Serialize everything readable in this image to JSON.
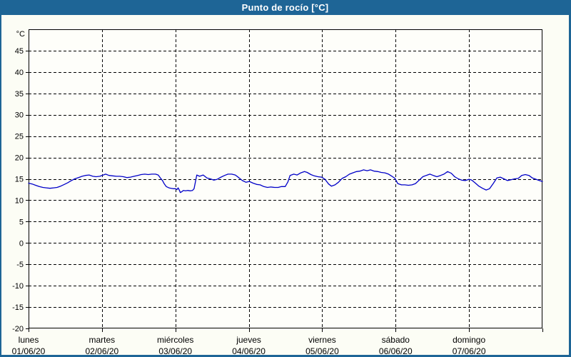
{
  "window": {
    "title": "Punto de rocío [°C]",
    "titlebar_color": "#1e6596",
    "border_color": "#1e6596",
    "background_color": "#fcfdf5"
  },
  "chart_data": {
    "type": "line",
    "title": "Punto de rocío [°C]",
    "y_unit_label": "°C",
    "ylim": [
      -20,
      50
    ],
    "yticks": [
      45,
      40,
      35,
      30,
      25,
      20,
      15,
      10,
      5,
      0,
      -5,
      -10,
      -15,
      -20
    ],
    "grid": "dashed",
    "legend_position": "none",
    "line_color": "#0000c8",
    "plot_background": "#fefefa",
    "x_range_hours": [
      0,
      168
    ],
    "x_days": [
      {
        "name": "lunes",
        "date": "01/06/20"
      },
      {
        "name": "martes",
        "date": "02/06/20"
      },
      {
        "name": "miércoles",
        "date": "03/06/20"
      },
      {
        "name": "jueves",
        "date": "04/06/20"
      },
      {
        "name": "viernes",
        "date": "05/06/20"
      },
      {
        "name": "sábado",
        "date": "06/06/20"
      },
      {
        "name": "domingo",
        "date": "07/06/20"
      }
    ],
    "series": [
      {
        "name": "Punto de rocío",
        "unit": "°C",
        "points": [
          [
            0.0,
            14.0
          ],
          [
            1.2,
            13.8
          ],
          [
            2.3,
            13.5
          ],
          [
            3.5,
            13.2
          ],
          [
            4.7,
            13.0
          ],
          [
            5.8,
            12.9
          ],
          [
            7.0,
            12.8
          ],
          [
            8.2,
            12.9
          ],
          [
            9.3,
            13.0
          ],
          [
            10.5,
            13.3
          ],
          [
            11.7,
            13.7
          ],
          [
            12.8,
            14.1
          ],
          [
            14.0,
            14.6
          ],
          [
            15.1,
            15.0
          ],
          [
            16.3,
            15.3
          ],
          [
            17.5,
            15.6
          ],
          [
            18.6,
            15.8
          ],
          [
            19.8,
            15.9
          ],
          [
            21.0,
            15.6
          ],
          [
            22.1,
            15.5
          ],
          [
            23.3,
            15.6
          ],
          [
            24.0,
            15.8
          ],
          [
            25.2,
            16.1
          ],
          [
            26.3,
            15.8
          ],
          [
            27.5,
            15.7
          ],
          [
            28.7,
            15.6
          ],
          [
            29.8,
            15.6
          ],
          [
            31.0,
            15.5
          ],
          [
            32.2,
            15.3
          ],
          [
            33.3,
            15.4
          ],
          [
            34.5,
            15.6
          ],
          [
            35.7,
            15.8
          ],
          [
            36.8,
            16.0
          ],
          [
            38.0,
            16.1
          ],
          [
            39.1,
            16.0
          ],
          [
            40.3,
            16.1
          ],
          [
            41.5,
            16.1
          ],
          [
            42.4,
            15.9
          ],
          [
            43.1,
            15.2
          ],
          [
            43.8,
            14.6
          ],
          [
            44.3,
            13.9
          ],
          [
            45.0,
            13.2
          ],
          [
            45.9,
            12.9
          ],
          [
            46.6,
            12.8
          ],
          [
            47.3,
            12.7
          ],
          [
            48.0,
            12.7
          ],
          [
            48.5,
            12.5
          ],
          [
            48.9,
            12.9
          ],
          [
            49.4,
            12.2
          ],
          [
            49.6,
            11.8
          ],
          [
            50.1,
            12.0
          ],
          [
            50.6,
            12.3
          ],
          [
            51.3,
            12.2
          ],
          [
            52.0,
            12.3
          ],
          [
            52.9,
            12.2
          ],
          [
            53.6,
            12.3
          ],
          [
            54.1,
            12.7
          ],
          [
            55.0,
            15.9
          ],
          [
            55.9,
            15.6
          ],
          [
            57.1,
            15.9
          ],
          [
            58.3,
            15.2
          ],
          [
            59.4,
            15.0
          ],
          [
            60.6,
            14.7
          ],
          [
            61.7,
            14.9
          ],
          [
            62.9,
            15.4
          ],
          [
            64.1,
            15.8
          ],
          [
            65.2,
            16.1
          ],
          [
            66.4,
            16.1
          ],
          [
            67.6,
            15.9
          ],
          [
            68.7,
            15.3
          ],
          [
            69.9,
            14.6
          ],
          [
            71.1,
            14.2
          ],
          [
            72.2,
            14.4
          ],
          [
            73.4,
            14.0
          ],
          [
            74.6,
            13.7
          ],
          [
            75.7,
            13.6
          ],
          [
            76.9,
            13.2
          ],
          [
            78.1,
            13.0
          ],
          [
            79.2,
            13.1
          ],
          [
            80.4,
            13.0
          ],
          [
            81.6,
            13.0
          ],
          [
            82.7,
            13.2
          ],
          [
            83.9,
            13.2
          ],
          [
            84.8,
            14.3
          ],
          [
            85.5,
            15.8
          ],
          [
            86.7,
            16.1
          ],
          [
            87.8,
            15.9
          ],
          [
            89.0,
            16.4
          ],
          [
            90.2,
            16.7
          ],
          [
            91.1,
            16.5
          ],
          [
            92.3,
            16.0
          ],
          [
            93.4,
            15.7
          ],
          [
            94.6,
            15.5
          ],
          [
            95.8,
            15.4
          ],
          [
            96.9,
            14.9
          ],
          [
            98.1,
            13.8
          ],
          [
            99.0,
            13.3
          ],
          [
            100.2,
            13.6
          ],
          [
            101.3,
            14.2
          ],
          [
            102.5,
            15.1
          ],
          [
            103.7,
            15.5
          ],
          [
            104.9,
            16.1
          ],
          [
            106.0,
            16.4
          ],
          [
            107.2,
            16.7
          ],
          [
            108.3,
            16.8
          ],
          [
            109.5,
            17.1
          ],
          [
            110.7,
            16.9
          ],
          [
            111.8,
            17.1
          ],
          [
            113.0,
            16.8
          ],
          [
            114.2,
            16.7
          ],
          [
            115.3,
            16.5
          ],
          [
            116.5,
            16.4
          ],
          [
            117.7,
            16.1
          ],
          [
            118.8,
            15.6
          ],
          [
            119.8,
            15.1
          ],
          [
            120.7,
            13.9
          ],
          [
            121.9,
            13.6
          ],
          [
            123.0,
            13.6
          ],
          [
            124.2,
            13.5
          ],
          [
            125.4,
            13.6
          ],
          [
            126.5,
            13.9
          ],
          [
            127.7,
            14.7
          ],
          [
            128.9,
            15.5
          ],
          [
            130.0,
            15.8
          ],
          [
            131.2,
            16.1
          ],
          [
            132.3,
            15.8
          ],
          [
            133.5,
            15.5
          ],
          [
            134.7,
            15.8
          ],
          [
            135.8,
            16.1
          ],
          [
            137.0,
            16.7
          ],
          [
            138.2,
            16.3
          ],
          [
            139.3,
            15.5
          ],
          [
            140.5,
            15.0
          ],
          [
            141.6,
            14.7
          ],
          [
            142.8,
            14.6
          ],
          [
            144.0,
            14.9
          ],
          [
            144.9,
            14.7
          ],
          [
            146.1,
            14.0
          ],
          [
            147.2,
            13.3
          ],
          [
            148.4,
            12.8
          ],
          [
            149.6,
            12.4
          ],
          [
            150.7,
            12.7
          ],
          [
            151.9,
            13.9
          ],
          [
            153.1,
            15.2
          ],
          [
            154.2,
            15.4
          ],
          [
            155.4,
            15.0
          ],
          [
            156.6,
            14.6
          ],
          [
            157.7,
            14.8
          ],
          [
            158.9,
            15.0
          ],
          [
            160.1,
            15.1
          ],
          [
            161.2,
            15.8
          ],
          [
            162.4,
            16.0
          ],
          [
            163.6,
            15.8
          ],
          [
            164.7,
            15.2
          ],
          [
            165.9,
            14.9
          ],
          [
            167.0,
            14.6
          ],
          [
            168.0,
            14.4
          ]
        ]
      }
    ]
  }
}
